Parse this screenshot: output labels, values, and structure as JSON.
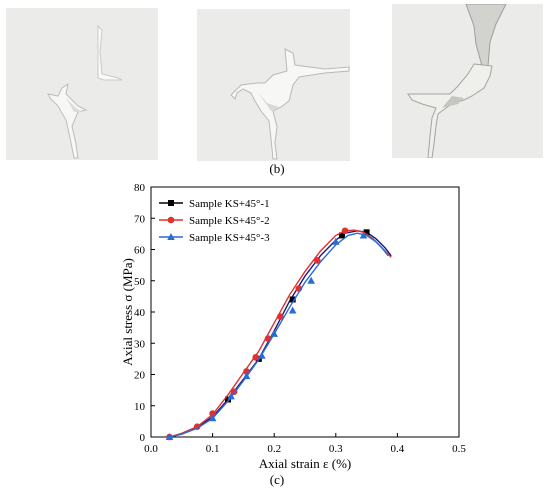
{
  "figure": {
    "caption_b": "(b)",
    "caption_c": "(c)",
    "photos": [
      {
        "name": "specimen-photo-1"
      },
      {
        "name": "specimen-photo-2"
      },
      {
        "name": "specimen-photo-3"
      }
    ]
  },
  "chart_data": {
    "type": "line",
    "xlabel": "Axial strain ε (%)",
    "ylabel": "Axial stress σ (MPa)",
    "xlim": [
      0.0,
      0.5
    ],
    "ylim": [
      0,
      80
    ],
    "xticks": [
      "0.0",
      "0.1",
      "0.2",
      "0.3",
      "0.4",
      "0.5"
    ],
    "yticks": [
      "0",
      "10",
      "20",
      "30",
      "40",
      "50",
      "60",
      "70",
      "80"
    ],
    "grid": false,
    "legend": "top-left",
    "series": [
      {
        "name": "Sample KS+45°-1",
        "color": "#000000",
        "marker": "square",
        "line_color": "#1a1a7a",
        "x": [
          0.03,
          0.05,
          0.075,
          0.1,
          0.125,
          0.15,
          0.175,
          0.2,
          0.225,
          0.25,
          0.275,
          0.3,
          0.315,
          0.335,
          0.35,
          0.365,
          0.38,
          0.39
        ],
        "y": [
          0,
          1,
          3,
          6.5,
          12,
          18.5,
          25,
          34,
          43.5,
          51.5,
          58,
          63,
          65.2,
          66,
          65.5,
          63.5,
          60.5,
          58
        ],
        "markers_x": [
          0.125,
          0.175,
          0.23,
          0.31,
          0.35
        ],
        "markers_y": [
          12,
          25,
          44,
          64.5,
          65.5
        ]
      },
      {
        "name": "Sample KS+45°-2",
        "color": "#e0302f",
        "marker": "circle",
        "line_color": "#e0302f",
        "x": [
          0.03,
          0.05,
          0.075,
          0.1,
          0.125,
          0.15,
          0.175,
          0.2,
          0.225,
          0.25,
          0.275,
          0.3,
          0.315,
          0.33,
          0.345,
          0.36,
          0.375,
          0.39
        ],
        "y": [
          0,
          1.2,
          3.3,
          7.2,
          13.5,
          20.5,
          27.5,
          36.5,
          45.5,
          53,
          59.5,
          64.5,
          66,
          66.2,
          65.5,
          63.5,
          60.5,
          57.5
        ],
        "markers_x": [
          0.03,
          0.075,
          0.1,
          0.135,
          0.155,
          0.17,
          0.19,
          0.21,
          0.24,
          0.27,
          0.315
        ],
        "markers_y": [
          0,
          3.3,
          7.5,
          14.5,
          21,
          25.5,
          31.5,
          38.5,
          47.5,
          56.5,
          66
        ]
      },
      {
        "name": "Sample KS+45°-3",
        "color": "#2a6bd6",
        "marker": "triangle",
        "line_color": "#2a6bd6",
        "x": [
          0.03,
          0.05,
          0.075,
          0.1,
          0.125,
          0.15,
          0.175,
          0.2,
          0.225,
          0.25,
          0.275,
          0.3,
          0.32,
          0.335,
          0.35,
          0.365,
          0.375,
          0.385
        ],
        "y": [
          0,
          0.9,
          2.8,
          6,
          11.5,
          18,
          24.8,
          33,
          41.5,
          49.5,
          56,
          61.5,
          64.5,
          65.2,
          64.5,
          62.5,
          60.5,
          58
        ],
        "markers_x": [
          0.03,
          0.1,
          0.13,
          0.155,
          0.18,
          0.2,
          0.23,
          0.26,
          0.3,
          0.345
        ],
        "markers_y": [
          0,
          6,
          13,
          19.5,
          26,
          33,
          40.5,
          50,
          62.5,
          64.5
        ]
      }
    ]
  }
}
